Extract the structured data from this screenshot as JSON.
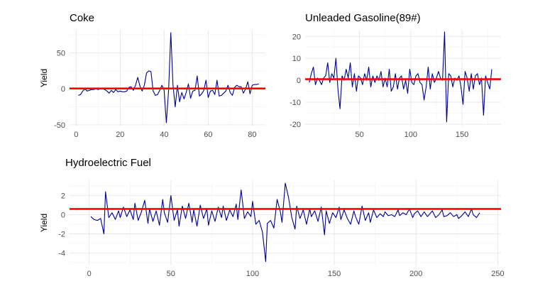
{
  "colors": {
    "series": "#00008B",
    "reference": "#FF0000"
  },
  "chart_data": [
    {
      "type": "line",
      "title": "Coke",
      "xlabel": "",
      "ylabel": "Yield",
      "xlim": [
        -3,
        86
      ],
      "ylim": [
        -52,
        82
      ],
      "xticks": [
        0,
        20,
        40,
        60,
        80
      ],
      "yticks": [
        -50,
        0,
        50
      ],
      "grid": true,
      "reference_line": 0.5,
      "series": [
        {
          "x": [
            1,
            2,
            3,
            4,
            5,
            6,
            7,
            8,
            9,
            10,
            11,
            12,
            13,
            14,
            15,
            16,
            17,
            18,
            19,
            20,
            21,
            22,
            23,
            24,
            25,
            26,
            27,
            28,
            29,
            30,
            31,
            32,
            33,
            34,
            35,
            36,
            37,
            38,
            39,
            40,
            41,
            42,
            43,
            44,
            45,
            46,
            47,
            48,
            49,
            50,
            51,
            52,
            53,
            54,
            55,
            56,
            57,
            58,
            59,
            60,
            61,
            62,
            63,
            64,
            65,
            66,
            67,
            68,
            69,
            70,
            71,
            72,
            73,
            74,
            75,
            76,
            77,
            78,
            79,
            80,
            81,
            82,
            83
          ],
          "y": [
            -9,
            -8,
            -3,
            0,
            -3,
            -2,
            -1,
            -1,
            0,
            -1,
            0,
            0,
            -1,
            -3,
            -6,
            -2,
            -5,
            -1,
            -4,
            -3,
            -4,
            -4,
            -3,
            2,
            3,
            -2,
            5,
            16,
            4,
            -3,
            5,
            22,
            25,
            24,
            -3,
            -9,
            -8,
            -2,
            5,
            -2,
            -47,
            -2,
            78,
            5,
            -25,
            5,
            -18,
            -5,
            -14,
            -5,
            7,
            -13,
            -3,
            -2,
            18,
            -10,
            -7,
            -2,
            12,
            -12,
            -3,
            -2,
            -8,
            12,
            -10,
            -9,
            -6,
            -3,
            5,
            -5,
            -9,
            2,
            5,
            3,
            3,
            -6,
            0,
            10,
            -7,
            5,
            6,
            6,
            7
          ]
        }
      ]
    },
    {
      "type": "line",
      "title": "Unleaded Gasoline(89#)",
      "xlabel": "",
      "ylabel": "",
      "xlim": [
        -3,
        188
      ],
      "ylim": [
        -21,
        23
      ],
      "xticks": [
        50,
        100,
        150
      ],
      "yticks": [
        -20,
        -10,
        0,
        10,
        20
      ],
      "grid": true,
      "reference_line": 0.5,
      "series": [
        {
          "x": [
            1,
            3,
            5,
            7,
            9,
            11,
            13,
            15,
            17,
            19,
            21,
            23,
            25,
            27,
            29,
            31,
            33,
            35,
            37,
            39,
            41,
            43,
            45,
            47,
            49,
            51,
            53,
            55,
            57,
            59,
            61,
            63,
            65,
            67,
            69,
            71,
            73,
            75,
            77,
            79,
            81,
            83,
            85,
            87,
            89,
            91,
            93,
            95,
            97,
            99,
            101,
            103,
            105,
            107,
            109,
            111,
            113,
            115,
            117,
            119,
            121,
            123,
            125,
            127,
            129,
            131,
            133,
            135,
            137,
            139,
            141,
            143,
            145,
            147,
            149,
            151,
            153,
            155,
            157,
            159,
            161,
            163,
            165,
            167,
            169,
            171,
            173,
            175,
            177,
            179
          ],
          "y": [
            -1,
            3,
            6,
            -2,
            1,
            0,
            -2,
            1,
            2,
            8,
            -1,
            3,
            1,
            10,
            -4,
            -13,
            2,
            0,
            5,
            1,
            8,
            -3,
            3,
            -5,
            2,
            1,
            -2,
            3,
            0,
            6,
            -3,
            2,
            -1,
            2,
            0,
            4,
            -3,
            1,
            -3,
            5,
            -5,
            -3,
            3,
            -4,
            1,
            2,
            -4,
            0,
            -6,
            5,
            -1,
            -2,
            2,
            3,
            -1,
            -2,
            -9,
            -3,
            6,
            -4,
            3,
            -1,
            1,
            4,
            1,
            0,
            22,
            -19,
            3,
            2,
            -3,
            1,
            0,
            2,
            -3,
            -11,
            4,
            1,
            -5,
            3,
            -4,
            2,
            3,
            -2,
            1,
            -16,
            2,
            -1,
            -4,
            5
          ]
        }
      ]
    },
    {
      "type": "line",
      "title": "Hydroelectric Fuel",
      "xlabel": "",
      "ylabel": "Yield",
      "xlim": [
        -12,
        252
      ],
      "ylim": [
        -5.3,
        3.6
      ],
      "xticks": [
        0,
        50,
        100,
        150,
        200,
        250
      ],
      "yticks": [
        -4,
        -2,
        0,
        2
      ],
      "grid": true,
      "reference_line": 0.6,
      "series": [
        {
          "x": [
            1,
            3,
            5,
            7,
            9,
            10,
            12,
            14,
            16,
            18,
            19,
            21,
            23,
            25,
            27,
            28,
            30,
            32,
            34,
            36,
            37,
            39,
            41,
            43,
            45,
            46,
            48,
            50,
            52,
            54,
            55,
            57,
            59,
            61,
            63,
            64,
            66,
            68,
            70,
            72,
            73,
            75,
            77,
            79,
            81,
            82,
            84,
            86,
            88,
            90,
            91,
            93,
            95,
            97,
            99,
            100,
            102,
            104,
            106,
            108,
            109,
            111,
            113,
            115,
            117,
            118,
            120,
            122,
            124,
            126,
            127,
            129,
            131,
            133,
            135,
            136,
            138,
            140,
            142,
            144,
            145,
            147,
            149,
            151,
            153,
            154,
            156,
            158,
            160,
            162,
            163,
            165,
            167,
            169,
            171,
            172,
            174,
            176,
            178,
            180,
            181,
            183,
            185,
            187,
            189,
            190,
            192,
            194,
            196,
            198,
            199,
            201,
            203,
            205,
            207,
            208,
            210,
            212,
            214,
            216,
            217,
            219,
            221,
            223,
            225,
            226,
            228,
            230,
            232,
            234,
            235,
            237,
            239
          ],
          "y": [
            -0.2,
            -0.5,
            -0.6,
            -0.4,
            -2,
            2.4,
            -0.3,
            0.2,
            -0.5,
            0.4,
            -0.3,
            0.8,
            -0.2,
            0.5,
            -0.5,
            1.2,
            -0.6,
            0.3,
            1.5,
            -0.9,
            0.6,
            -0.7,
            0.4,
            -1.1,
            1.6,
            0.2,
            -0.8,
            2.0,
            -0.6,
            0.5,
            -1.2,
            0.9,
            -0.4,
            1.2,
            -0.8,
            0.5,
            -1.2,
            1.0,
            -0.4,
            0.6,
            -1.1,
            0.4,
            -0.7,
            0.8,
            -0.3,
            0.9,
            -0.6,
            0.5,
            -0.2,
            1.1,
            -0.5,
            2.6,
            -0.4,
            0.3,
            -0.2,
            1.4,
            -1.0,
            -0.6,
            -1.8,
            -4.9,
            -0.9,
            -0.6,
            -1.4,
            1.6,
            0.3,
            -0.8,
            3.3,
            1.8,
            -0.3,
            -1.5,
            0.9,
            -0.4,
            0.5,
            -1.0,
            0.6,
            -0.2,
            0.4,
            -0.7,
            0.8,
            -2.1,
            0.4,
            -0.9,
            0.2,
            -0.3,
            0.8,
            -0.5,
            0.5,
            -0.4,
            -1.0,
            0.4,
            -0.2,
            -1.0,
            0.9,
            -0.6,
            0.2,
            -0.8,
            0.5,
            -0.3,
            0.1,
            -0.2,
            0.3,
            -0.1,
            0.0,
            -0.2,
            0.5,
            -0.1,
            0.2,
            0.0,
            0.6,
            -0.3,
            0.1,
            0.4,
            -0.2,
            0.3,
            -0.2,
            0.0,
            0.4,
            -0.3,
            0.0,
            0.5,
            -0.2,
            -0.1,
            0.2,
            -0.2,
            0.0,
            -0.4,
            -0.1,
            0.3,
            -0.2,
            0.6,
            0.0,
            -0.3,
            0.2
          ]
        }
      ]
    }
  ]
}
